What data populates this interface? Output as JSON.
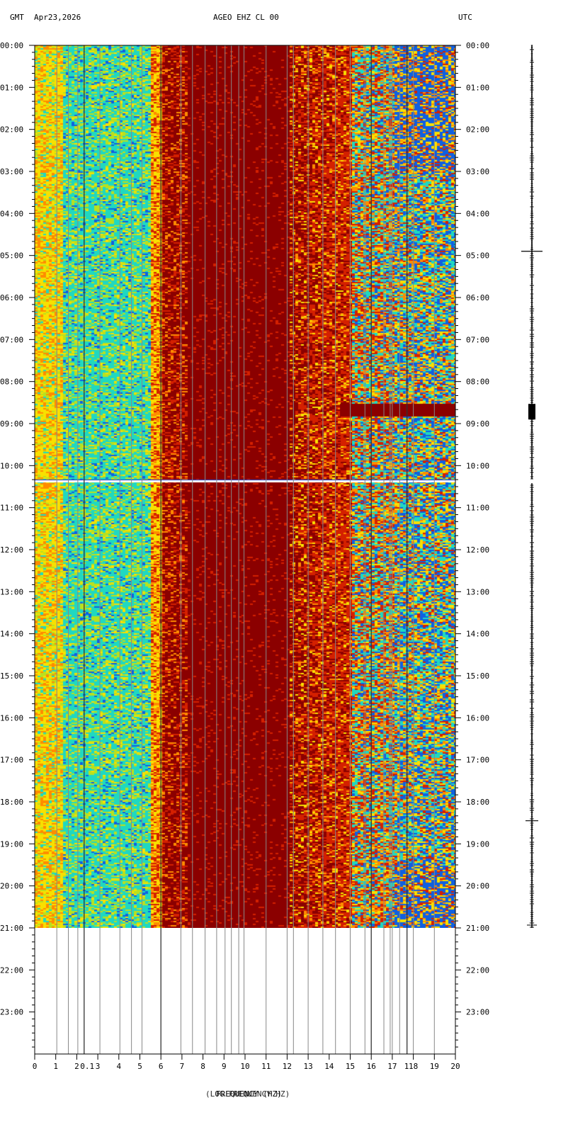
{
  "header": {
    "left_tz": "GMT",
    "date": "Apr23,2026",
    "station": "AGEO EHZ CL 00",
    "right_tz": "UTC"
  },
  "chart_data": {
    "type": "heatmap",
    "title": "AGEO EHZ CL 00",
    "xlabel": "FREQUENCY (HZ)",
    "xlabel_overlap": "(LOG FREQUENCY HZ)",
    "x_range": [
      0,
      20
    ],
    "x_ticks": [
      "0",
      "1",
      "2",
      "3",
      "4",
      "5",
      "6",
      "7",
      "8",
      "9",
      "10",
      "11",
      "12",
      "13",
      "14",
      "15",
      "16",
      "17",
      "18",
      "19",
      "20"
    ],
    "log_tick_labels": [
      "0.1",
      "1"
    ],
    "y_ticks": [
      "00:00",
      "01:00",
      "02:00",
      "03:00",
      "04:00",
      "05:00",
      "06:00",
      "07:00",
      "08:00",
      "09:00",
      "10:00",
      "11:00",
      "12:00",
      "13:00",
      "14:00",
      "15:00",
      "16:00",
      "17:00",
      "18:00",
      "19:00",
      "20:00",
      "21:00",
      "22:00",
      "23:00"
    ],
    "y_range_hours": [
      0,
      24
    ],
    "data_end_hour": 21,
    "gap_hour": 10.35,
    "colors": {
      "dark_red": "#8b0000",
      "red": "#d42000",
      "orange": "#ff8c00",
      "yellow": "#f8e000",
      "yellowgreen": "#b8e020",
      "cyan": "#20d8c0",
      "blue": "#1060e0"
    },
    "seismogram_events_hours": [
      4.9,
      8.7,
      18.45
    ]
  }
}
